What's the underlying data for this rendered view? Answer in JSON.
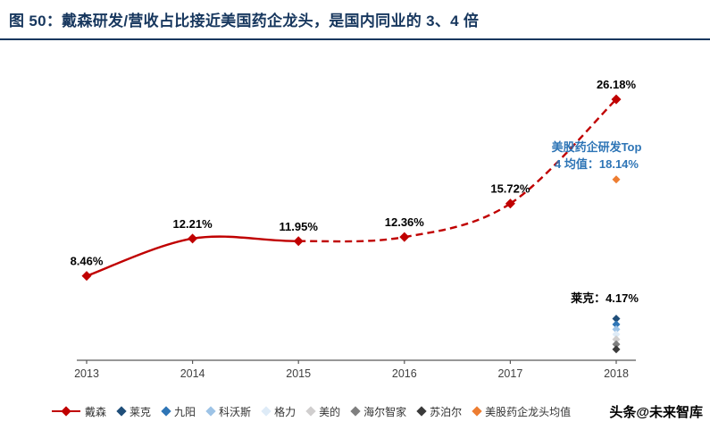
{
  "header": {
    "title": "图 50：戴森研发/营收占比接近美国药企龙头，是国内同业的 3、4 倍",
    "accent_color": "#17375E"
  },
  "footer": {
    "watermark": "头条@未来智库"
  },
  "chart_data": {
    "type": "line",
    "title": "戴森研发/营收占比接近美国药企龙头，是国内同业的 3、4 倍",
    "x_tick_labels": [
      "2013",
      "2014",
      "2015",
      "2016",
      "2017",
      "2018"
    ],
    "ylim": [
      0,
      30
    ],
    "grid": false,
    "legend_position": "bottom",
    "series": [
      {
        "name": "戴森",
        "color": "#C00000",
        "marker": "diamond",
        "values": [
          8.46,
          12.21,
          11.95,
          12.36,
          15.72,
          26.18
        ],
        "point_labels": [
          "8.46%",
          "12.21%",
          "11.95%",
          "12.36%",
          "15.72%",
          "26.18%"
        ],
        "line_style": "solid 2013-2015, dashed 2015-2018",
        "solid_segments": 2
      }
    ],
    "scatter_points": [
      {
        "name": "美股药企龙头均值",
        "x": "2018",
        "value": 18.14,
        "color": "#ED7D31",
        "estimated": false
      },
      {
        "name": "莱克",
        "x": "2018",
        "value": 4.17,
        "color": "#1F4E79",
        "estimated": false
      },
      {
        "name": "九阳",
        "x": "2018",
        "value": 3.6,
        "color": "#2E75B6",
        "estimated": true
      },
      {
        "name": "科沃斯",
        "x": "2018",
        "value": 3.1,
        "color": "#9DC3E6",
        "estimated": true
      },
      {
        "name": "格力",
        "x": "2018",
        "value": 2.6,
        "color": "#DEEBF7",
        "estimated": true
      },
      {
        "name": "美的",
        "x": "2018",
        "value": 2.1,
        "color": "#D0CECE",
        "estimated": true
      },
      {
        "name": "海尔智家",
        "x": "2018",
        "value": 1.6,
        "color": "#7F7F7F",
        "estimated": true
      },
      {
        "name": "苏泊尔",
        "x": "2018",
        "value": 1.1,
        "color": "#3B3B3B",
        "estimated": true
      }
    ],
    "annotations": [
      {
        "id": "us-pharma-top4",
        "lines": [
          "美股药企研发Top",
          "4 均值：18.14%"
        ],
        "color": "#2E75B6"
      },
      {
        "id": "laike-value",
        "lines": [
          "莱克：4.17%"
        ],
        "color": "#000000"
      }
    ],
    "legend": [
      {
        "label": "戴森",
        "color": "#C00000",
        "marker": "line-diamond"
      },
      {
        "label": "莱克",
        "color": "#1F4E79",
        "marker": "diamond"
      },
      {
        "label": "九阳",
        "color": "#2E75B6",
        "marker": "diamond"
      },
      {
        "label": "科沃斯",
        "color": "#9DC3E6",
        "marker": "diamond"
      },
      {
        "label": "格力",
        "color": "#DEEBF7",
        "marker": "diamond"
      },
      {
        "label": "美的",
        "color": "#D0CECE",
        "marker": "diamond"
      },
      {
        "label": "海尔智家",
        "color": "#7F7F7F",
        "marker": "diamond"
      },
      {
        "label": "苏泊尔",
        "color": "#3B3B3B",
        "marker": "diamond"
      },
      {
        "label": "美股药企龙头均值",
        "color": "#ED7D31",
        "marker": "diamond"
      }
    ]
  }
}
